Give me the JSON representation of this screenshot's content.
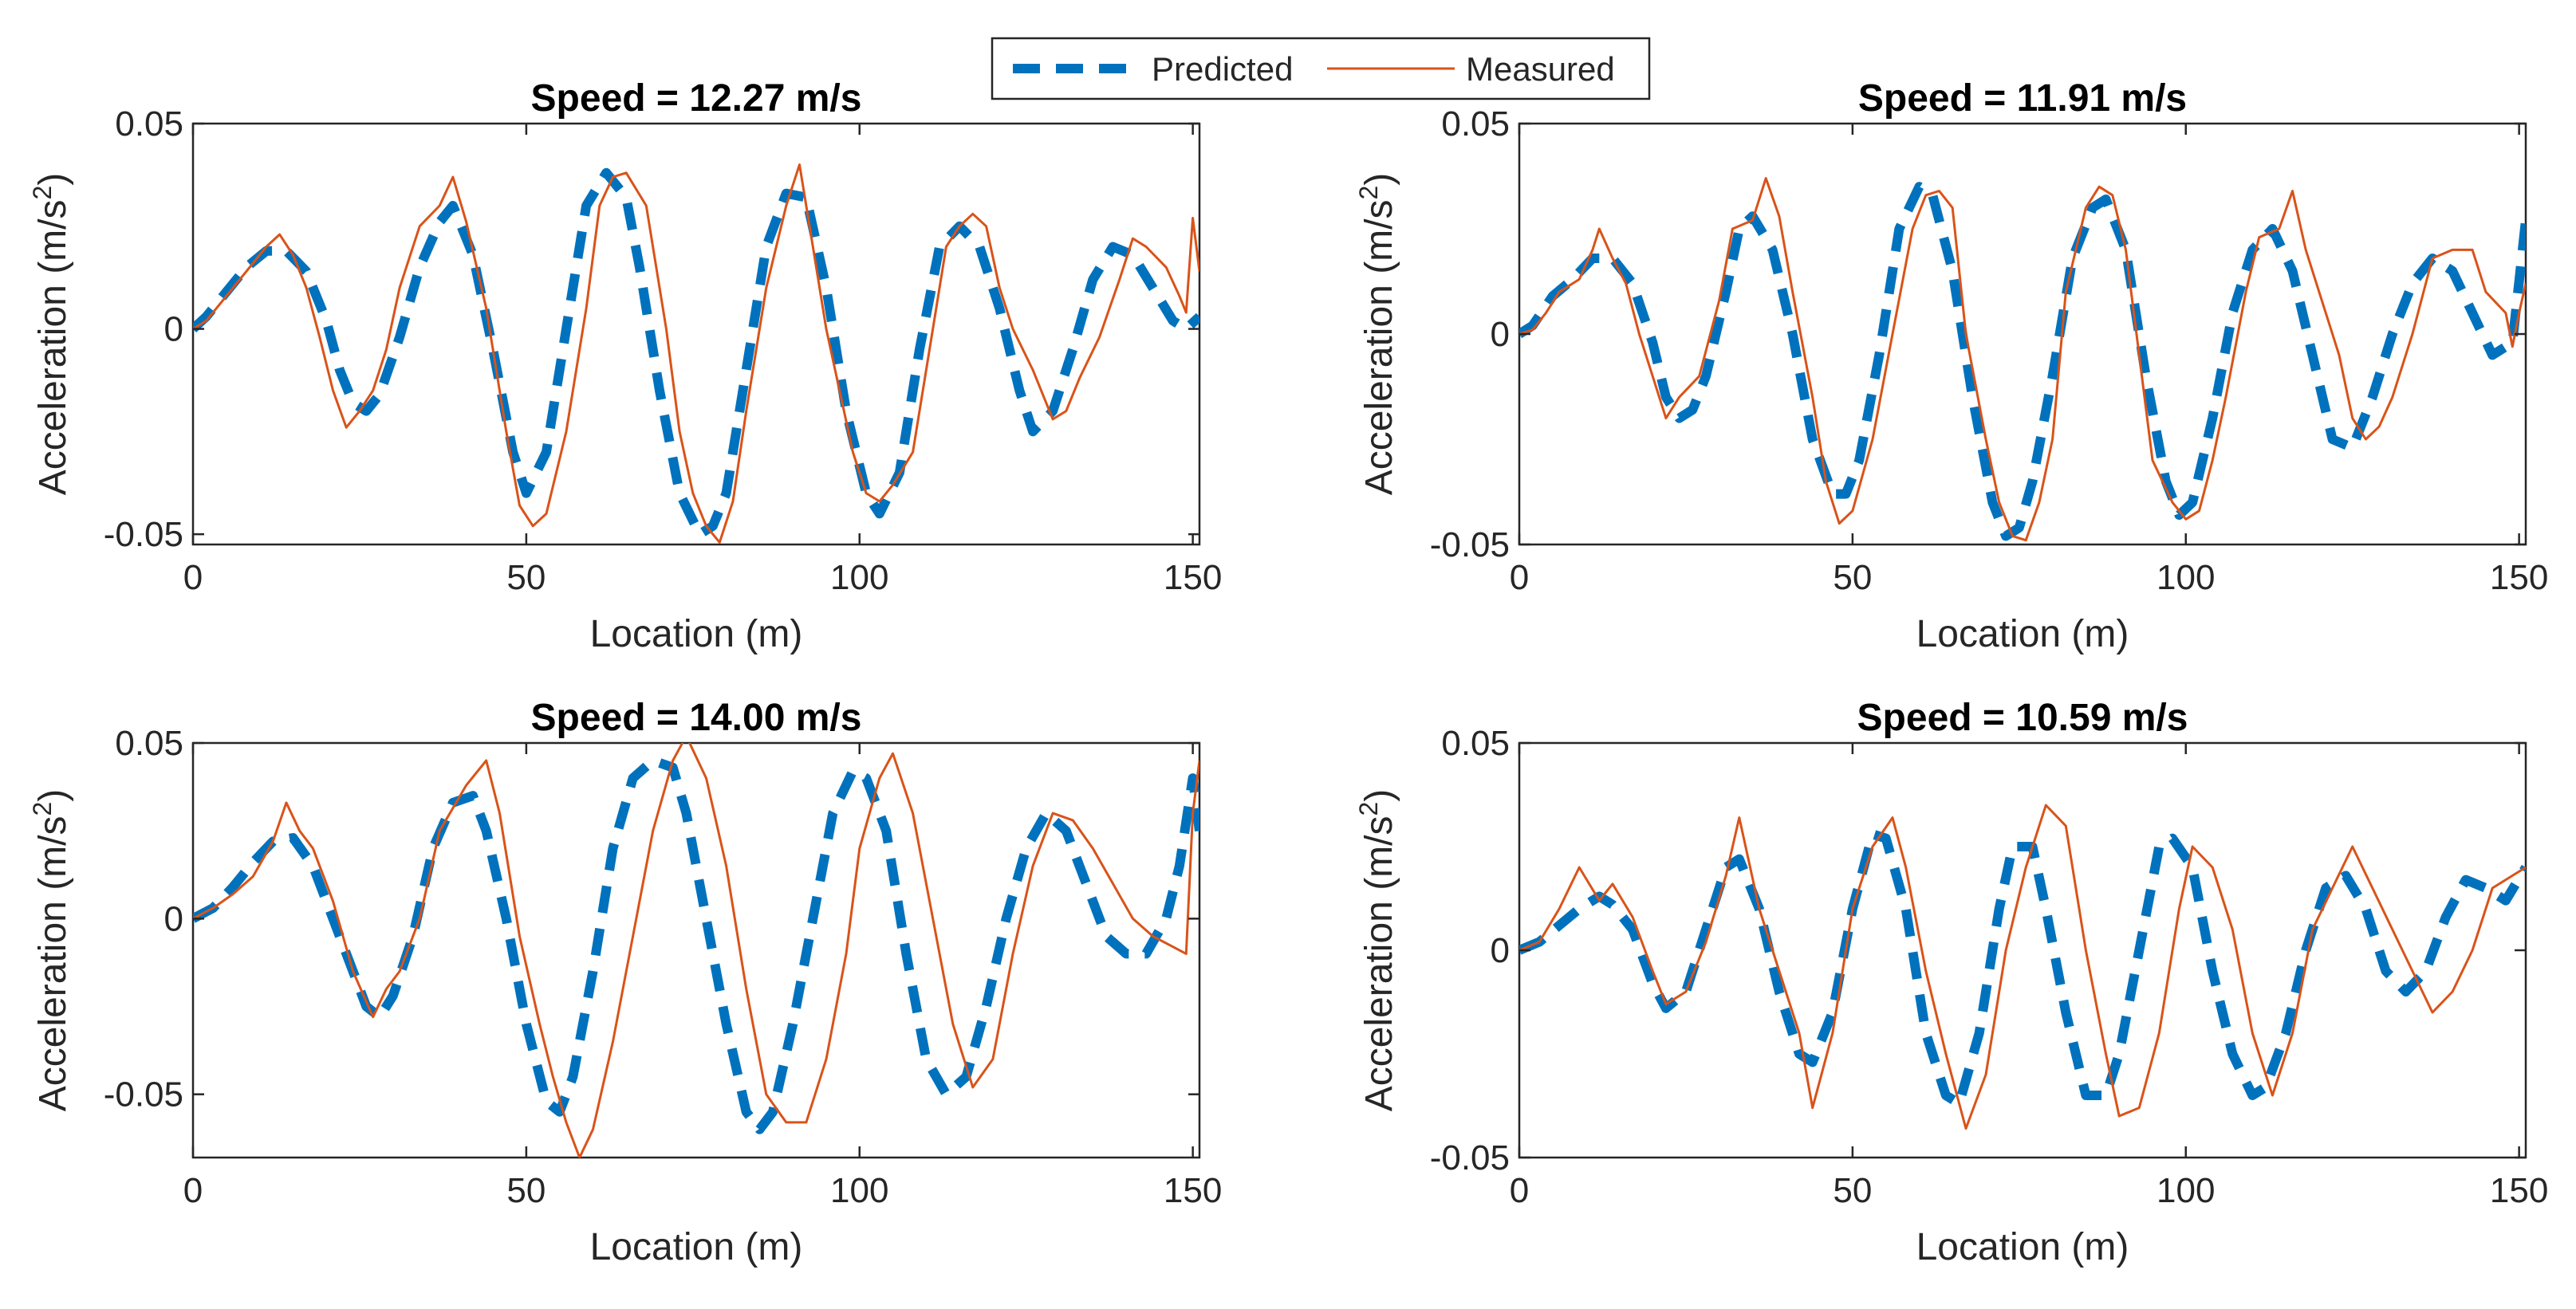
{
  "legend": {
    "predicted_label": "Predicted",
    "measured_label": "Measured"
  },
  "colors": {
    "predicted": "#0072BD",
    "measured": "#D95319"
  },
  "chart_data": [
    {
      "type": "line",
      "title": "Speed = 12.27 m/s",
      "xlabel": "Location (m)",
      "ylabel_main": "Acceleration (m/s",
      "ylabel_sup": "2",
      "ylabel_close": ")",
      "xlim": [
        0,
        151
      ],
      "ylim": [
        -0.0525,
        0.05
      ],
      "xticks": [
        0,
        50,
        100,
        150
      ],
      "yticks": [
        -0.05,
        0,
        0.05
      ],
      "ytick_labels": [
        "-0.05",
        "0",
        "0.05"
      ],
      "series": [
        {
          "name": "Predicted",
          "x": [
            0,
            2,
            5,
            8,
            11,
            14,
            17,
            20,
            22,
            24,
            26,
            28,
            31,
            34,
            37,
            39,
            42,
            45,
            48,
            50,
            53,
            56,
            59,
            62,
            65,
            67,
            70,
            73,
            76,
            78,
            80,
            83,
            86,
            89,
            92,
            95,
            98,
            101,
            103,
            106,
            109,
            112,
            115,
            118,
            121,
            124,
            126,
            129,
            132,
            135,
            138,
            141,
            144,
            147,
            149,
            151
          ],
          "y": [
            0,
            0.003,
            0.009,
            0.015,
            0.019,
            0.019,
            0.014,
            0.002,
            -0.01,
            -0.018,
            -0.02,
            -0.016,
            -0.002,
            0.015,
            0.026,
            0.03,
            0.018,
            -0.005,
            -0.03,
            -0.04,
            -0.03,
            0.0,
            0.03,
            0.038,
            0.032,
            0.015,
            -0.015,
            -0.04,
            -0.05,
            -0.048,
            -0.04,
            -0.01,
            0.02,
            0.033,
            0.032,
            0.01,
            -0.02,
            -0.04,
            -0.045,
            -0.035,
            -0.005,
            0.02,
            0.025,
            0.02,
            0.005,
            -0.015,
            -0.025,
            -0.02,
            -0.005,
            0.012,
            0.02,
            0.018,
            0.01,
            0.002,
            0.0,
            0.003
          ]
        },
        {
          "name": "Measured",
          "x": [
            0,
            2,
            5,
            8,
            11,
            13,
            15,
            17,
            19,
            21,
            23,
            25,
            27,
            29,
            31,
            34,
            37,
            39,
            41,
            44,
            47,
            49,
            51,
            53,
            56,
            59,
            61,
            63,
            65,
            68,
            71,
            73,
            75,
            77,
            79,
            81,
            83,
            86,
            89,
            91,
            93,
            95,
            97,
            99,
            101,
            103,
            105,
            108,
            111,
            113,
            115,
            117,
            119,
            121,
            123,
            126,
            129,
            131,
            133,
            136,
            139,
            141,
            143,
            146,
            148,
            149,
            150,
            151
          ],
          "y": [
            0,
            0.002,
            0.008,
            0.014,
            0.02,
            0.023,
            0.018,
            0.01,
            -0.002,
            -0.015,
            -0.024,
            -0.02,
            -0.015,
            -0.005,
            0.01,
            0.025,
            0.03,
            0.037,
            0.026,
            0.005,
            -0.025,
            -0.043,
            -0.048,
            -0.045,
            -0.025,
            0.005,
            0.03,
            0.037,
            0.038,
            0.03,
            0.0,
            -0.025,
            -0.04,
            -0.048,
            -0.052,
            -0.042,
            -0.02,
            0.01,
            0.03,
            0.04,
            0.02,
            0.0,
            -0.015,
            -0.03,
            -0.04,
            -0.042,
            -0.038,
            -0.03,
            0.0,
            0.02,
            0.025,
            0.028,
            0.025,
            0.01,
            0.0,
            -0.01,
            -0.022,
            -0.02,
            -0.012,
            -0.002,
            0.012,
            0.022,
            0.02,
            0.015,
            0.008,
            0.004,
            0.027,
            0.014
          ]
        }
      ]
    },
    {
      "type": "line",
      "title": "Speed = 11.91 m/s",
      "xlabel": "Location (m)",
      "ylabel_main": "Acceleration (m/s",
      "ylabel_sup": "2",
      "ylabel_close": ")",
      "xlim": [
        0,
        151
      ],
      "ylim": [
        -0.05,
        0.05
      ],
      "xticks": [
        0,
        50,
        100,
        150
      ],
      "yticks": [
        -0.05,
        0,
        0.05
      ],
      "ytick_labels": [
        "-0.05",
        "0",
        "0.05"
      ],
      "series": [
        {
          "name": "Predicted",
          "x": [
            0,
            2,
            5,
            8,
            11,
            14,
            17,
            20,
            22,
            24,
            26,
            28,
            31,
            33,
            35,
            38,
            41,
            44,
            47,
            49,
            51,
            54,
            57,
            60,
            62,
            65,
            68,
            71,
            73,
            75,
            77,
            80,
            83,
            86,
            88,
            91,
            94,
            97,
            99,
            101,
            104,
            107,
            110,
            113,
            116,
            119,
            122,
            125,
            128,
            131,
            134,
            137,
            140,
            143,
            146,
            149,
            151
          ],
          "y": [
            0,
            0.002,
            0.009,
            0.013,
            0.018,
            0.018,
            0.012,
            -0.002,
            -0.015,
            -0.02,
            -0.018,
            -0.01,
            0.01,
            0.025,
            0.028,
            0.02,
            0.0,
            -0.025,
            -0.038,
            -0.038,
            -0.03,
            -0.005,
            0.025,
            0.035,
            0.033,
            0.015,
            -0.015,
            -0.04,
            -0.048,
            -0.046,
            -0.035,
            -0.01,
            0.018,
            0.03,
            0.032,
            0.02,
            -0.01,
            -0.035,
            -0.043,
            -0.04,
            -0.02,
            0.005,
            0.02,
            0.025,
            0.015,
            -0.005,
            -0.025,
            -0.027,
            -0.015,
            0.0,
            0.012,
            0.018,
            0.015,
            0.005,
            -0.005,
            -0.002,
            0.027
          ]
        },
        {
          "name": "Measured",
          "x": [
            0,
            2,
            4,
            6,
            9,
            11,
            12,
            14,
            16,
            18,
            20,
            22,
            24,
            27,
            30,
            32,
            35,
            37,
            39,
            41,
            44,
            46,
            48,
            50,
            53,
            56,
            59,
            61,
            63,
            65,
            67,
            70,
            72,
            74,
            76,
            78,
            80,
            82,
            85,
            87,
            89,
            91,
            93,
            95,
            98,
            100,
            102,
            104,
            106,
            109,
            111,
            114,
            116,
            118,
            120,
            123,
            125,
            127,
            129,
            131,
            134,
            137,
            140,
            143,
            145,
            148,
            149,
            150,
            151
          ],
          "y": [
            0,
            0.001,
            0.005,
            0.01,
            0.013,
            0.02,
            0.025,
            0.018,
            0.012,
            0.0,
            -0.01,
            -0.02,
            -0.015,
            -0.01,
            0.008,
            0.025,
            0.027,
            0.037,
            0.028,
            0.01,
            -0.015,
            -0.035,
            -0.045,
            -0.042,
            -0.025,
            0.0,
            0.025,
            0.033,
            0.034,
            0.03,
            0.0,
            -0.025,
            -0.04,
            -0.048,
            -0.049,
            -0.04,
            -0.025,
            0.01,
            0.03,
            0.035,
            0.033,
            0.02,
            -0.005,
            -0.03,
            -0.04,
            -0.044,
            -0.042,
            -0.03,
            -0.015,
            0.01,
            0.023,
            0.025,
            0.034,
            0.02,
            0.01,
            -0.005,
            -0.02,
            -0.025,
            -0.022,
            -0.015,
            0.0,
            0.018,
            0.02,
            0.02,
            0.01,
            0.005,
            -0.003,
            0.005,
            0.012
          ]
        }
      ]
    },
    {
      "type": "line",
      "title": "Speed = 14.00 m/s",
      "xlabel": "Location (m)",
      "ylabel_main": "Acceleration (m/s",
      "ylabel_sup": "2",
      "ylabel_close": ")",
      "xlim": [
        0,
        151
      ],
      "ylim": [
        -0.068,
        0.05
      ],
      "xticks": [
        0,
        50,
        100,
        150
      ],
      "yticks": [
        -0.05,
        0,
        0.05
      ],
      "ytick_labels": [
        "-0.05",
        "0",
        "0.05"
      ],
      "series": [
        {
          "name": "Predicted",
          "x": [
            0,
            3,
            6,
            9,
            12,
            15,
            18,
            21,
            24,
            26,
            28,
            30,
            33,
            36,
            39,
            42,
            44,
            47,
            50,
            53,
            55,
            57,
            60,
            63,
            66,
            69,
            72,
            74,
            77,
            80,
            83,
            85,
            87,
            90,
            93,
            96,
            99,
            101,
            104,
            107,
            110,
            113,
            116,
            119,
            122,
            125,
            128,
            131,
            134,
            137,
            140,
            143,
            146,
            148,
            150,
            151
          ],
          "y": [
            0,
            0.003,
            0.009,
            0.016,
            0.022,
            0.023,
            0.015,
            0.0,
            -0.015,
            -0.025,
            -0.028,
            -0.022,
            -0.005,
            0.02,
            0.033,
            0.035,
            0.025,
            0.0,
            -0.03,
            -0.052,
            -0.055,
            -0.045,
            -0.015,
            0.02,
            0.04,
            0.045,
            0.043,
            0.03,
            0.0,
            -0.03,
            -0.055,
            -0.06,
            -0.055,
            -0.03,
            0.0,
            0.03,
            0.042,
            0.04,
            0.025,
            -0.01,
            -0.04,
            -0.05,
            -0.045,
            -0.025,
            0.0,
            0.02,
            0.03,
            0.025,
            0.01,
            -0.005,
            -0.01,
            -0.01,
            0.0,
            0.015,
            0.04,
            0.025
          ]
        },
        {
          "name": "Measured",
          "x": [
            0,
            3,
            6,
            9,
            12,
            14,
            16,
            18,
            21,
            24,
            27,
            29,
            31,
            34,
            37,
            41,
            44,
            46,
            49,
            52,
            54,
            56,
            58,
            60,
            63,
            66,
            69,
            72,
            74,
            77,
            80,
            83,
            86,
            89,
            92,
            95,
            98,
            100,
            103,
            105,
            108,
            111,
            114,
            117,
            120,
            123,
            126,
            129,
            132,
            135,
            138,
            141,
            144,
            147,
            149,
            150,
            151
          ],
          "y": [
            0,
            0.003,
            0.007,
            0.012,
            0.022,
            0.033,
            0.025,
            0.02,
            0.005,
            -0.015,
            -0.028,
            -0.02,
            -0.015,
            0.0,
            0.025,
            0.038,
            0.045,
            0.03,
            -0.005,
            -0.03,
            -0.045,
            -0.058,
            -0.068,
            -0.06,
            -0.035,
            -0.005,
            0.025,
            0.045,
            0.052,
            0.04,
            0.015,
            -0.02,
            -0.05,
            -0.058,
            -0.058,
            -0.04,
            -0.01,
            0.02,
            0.04,
            0.047,
            0.03,
            0.0,
            -0.03,
            -0.048,
            -0.04,
            -0.01,
            0.015,
            0.03,
            0.028,
            0.02,
            0.01,
            0.0,
            -0.005,
            -0.008,
            -0.01,
            0.03,
            0.045
          ]
        }
      ]
    },
    {
      "type": "line",
      "title": "Speed = 10.59 m/s",
      "xlabel": "Location (m)",
      "ylabel_main": "Acceleration (m/s",
      "ylabel_sup": "2",
      "ylabel_close": ")",
      "xlim": [
        0,
        151
      ],
      "ylim": [
        -0.05,
        0.05
      ],
      "xticks": [
        0,
        50,
        100,
        150
      ],
      "yticks": [
        -0.05,
        0,
        0.05
      ],
      "ytick_labels": [
        "-0.05",
        "0",
        "0.05"
      ],
      "series": [
        {
          "name": "Predicted",
          "x": [
            0,
            3,
            6,
            9,
            12,
            14,
            17,
            20,
            22,
            25,
            28,
            31,
            33,
            36,
            39,
            42,
            44,
            47,
            50,
            53,
            55,
            58,
            61,
            64,
            66,
            69,
            72,
            74,
            77,
            79,
            82,
            85,
            88,
            90,
            93,
            96,
            98,
            101,
            104,
            107,
            110,
            112,
            115,
            118,
            121,
            124,
            127,
            130,
            133,
            136,
            139,
            142,
            145,
            148,
            151
          ],
          "y": [
            0,
            0.002,
            0.006,
            0.01,
            0.013,
            0.011,
            0.005,
            -0.008,
            -0.014,
            -0.01,
            0.005,
            0.02,
            0.022,
            0.01,
            -0.01,
            -0.025,
            -0.027,
            -0.015,
            0.01,
            0.028,
            0.027,
            0.01,
            -0.02,
            -0.035,
            -0.037,
            -0.02,
            0.01,
            0.025,
            0.025,
            0.01,
            -0.015,
            -0.035,
            -0.035,
            -0.025,
            0.0,
            0.025,
            0.027,
            0.02,
            -0.005,
            -0.025,
            -0.035,
            -0.033,
            -0.02,
            0.0,
            0.015,
            0.018,
            0.01,
            -0.005,
            -0.01,
            -0.005,
            0.008,
            0.017,
            0.015,
            0.012,
            0.02
          ]
        },
        {
          "name": "Measured",
          "x": [
            0,
            3,
            6,
            9,
            12,
            14,
            17,
            20,
            22,
            25,
            28,
            31,
            33,
            36,
            39,
            42,
            44,
            47,
            50,
            53,
            56,
            58,
            61,
            64,
            67,
            70,
            73,
            76,
            79,
            82,
            85,
            88,
            90,
            93,
            96,
            99,
            101,
            104,
            107,
            110,
            113,
            116,
            119,
            122,
            125,
            128,
            131,
            134,
            137,
            140,
            143,
            146,
            149,
            151
          ],
          "y": [
            0,
            0.002,
            0.01,
            0.02,
            0.012,
            0.016,
            0.008,
            -0.005,
            -0.013,
            -0.01,
            0.002,
            0.018,
            0.032,
            0.01,
            -0.005,
            -0.02,
            -0.038,
            -0.02,
            0.01,
            0.025,
            0.032,
            0.02,
            -0.005,
            -0.025,
            -0.043,
            -0.03,
            0.0,
            0.02,
            0.035,
            0.03,
            0.0,
            -0.025,
            -0.04,
            -0.038,
            -0.02,
            0.01,
            0.025,
            0.02,
            0.005,
            -0.02,
            -0.035,
            -0.02,
            0.005,
            0.015,
            0.025,
            0.015,
            0.005,
            -0.005,
            -0.015,
            -0.01,
            0.0,
            0.015,
            0.018,
            0.02
          ]
        }
      ]
    }
  ]
}
